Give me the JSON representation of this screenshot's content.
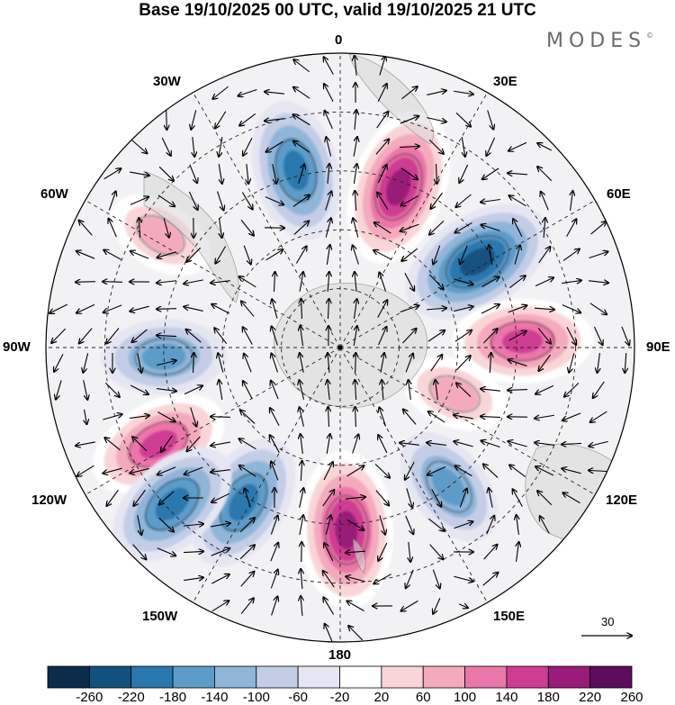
{
  "title": "Base 19/10/2025 00 UTC, valid 19/10/2025 21 UTC",
  "brand": "MODES",
  "brand_mark": "©",
  "longitude_labels": {
    "lon_0": "0",
    "lon_30e": "30E",
    "lon_60e": "60E",
    "lon_90e": "90E",
    "lon_120e": "120E",
    "lon_150e": "150E",
    "lon_180": "180",
    "lon_150w": "150W",
    "lon_120w": "120W",
    "lon_90w": "90W",
    "lon_60w": "60W",
    "lon_30w": "30W"
  },
  "reference_vector": {
    "label": "30"
  },
  "colorbar": {
    "ticks": [
      "-260",
      "-220",
      "-180",
      "-140",
      "-100",
      "-60",
      "-20",
      "20",
      "60",
      "100",
      "140",
      "180",
      "220",
      "260"
    ],
    "colors": [
      "#0b2c4a",
      "#12517f",
      "#2a78ad",
      "#5d9cc9",
      "#8fb5d9",
      "#c3cde6",
      "#e5e6f2",
      "#ffffff",
      "#f9d5d8",
      "#f4aabd",
      "#eb76aa",
      "#cf3c93",
      "#9a1b79",
      "#5d0c5e"
    ]
  },
  "anomalies": [
    {
      "name": "anomaly-south-atlantic-low",
      "lon": -14,
      "colat": 0.62,
      "value": -200
    },
    {
      "name": "anomaly-atlantic-high",
      "lon": 20,
      "colat": 0.58,
      "value": 230
    },
    {
      "name": "anomaly-indian-low",
      "lon": 58,
      "colat": 0.55,
      "value": -250
    },
    {
      "name": "anomaly-indian-high",
      "lon": 88,
      "colat": 0.62,
      "value": 200
    },
    {
      "name": "anomaly-south-pacific-high",
      "lon": -118,
      "colat": 0.7,
      "value": 190
    },
    {
      "name": "anomaly-pacific-high",
      "lon": 178,
      "colat": 0.62,
      "value": 230
    },
    {
      "name": "anomaly-pacific-low-west",
      "lon": -148,
      "colat": 0.62,
      "value": -210
    },
    {
      "name": "anomaly-pacific-low-far",
      "lon": -133,
      "colat": 0.78,
      "value": -180
    },
    {
      "name": "anomaly-tasman-low",
      "lon": 142,
      "colat": 0.6,
      "value": -170
    },
    {
      "name": "anomaly-amundsen-low",
      "lon": -93,
      "colat": 0.6,
      "value": -150
    },
    {
      "name": "anomaly-antarctic-high",
      "lon": 112,
      "colat": 0.42,
      "value": 120
    },
    {
      "name": "anomaly-south-america-high",
      "lon": -58,
      "colat": 0.72,
      "value": 110
    }
  ]
}
